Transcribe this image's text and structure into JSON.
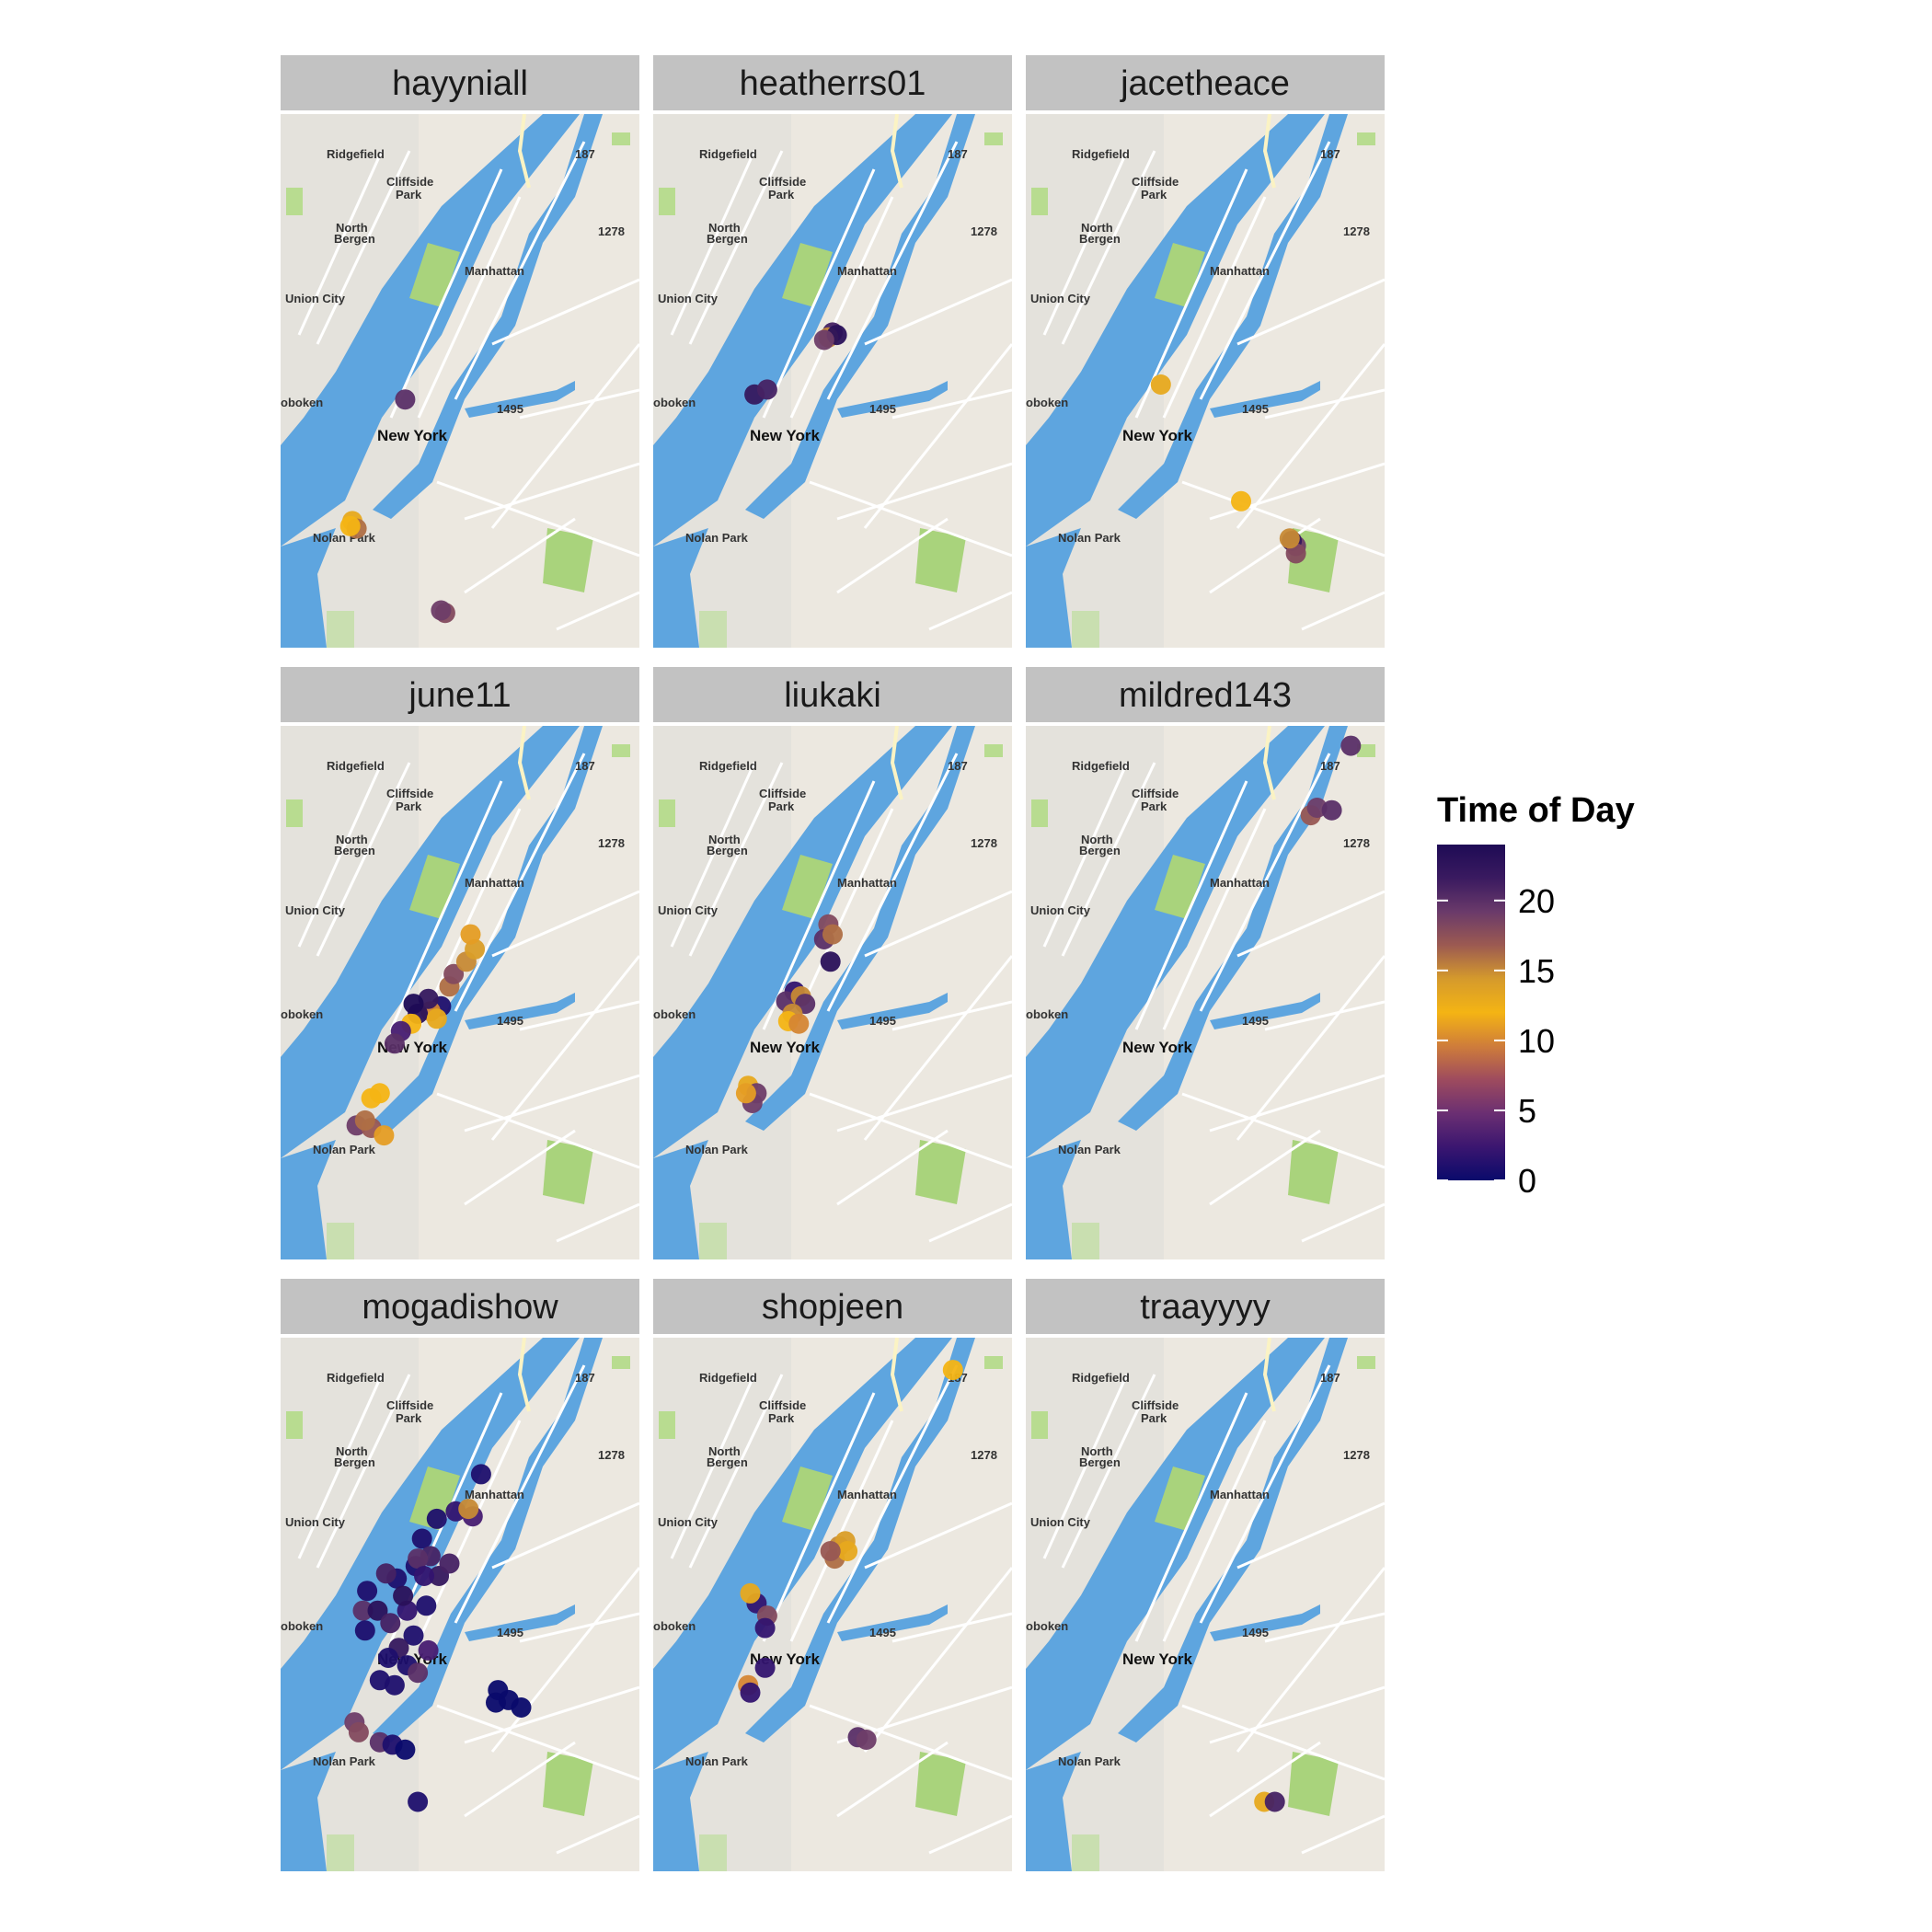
{
  "chart_data": {
    "type": "scatter",
    "facet_titles": [
      "hayyniall",
      "heatherrs01",
      "jacetheace",
      "june11",
      "liukaki",
      "mildred143",
      "mogadishow",
      "shopjeen",
      "traayyyy"
    ],
    "map_labels": [
      "Ridgefield",
      "Cliffside",
      "Park",
      "North",
      "Bergen",
      "Union City",
      "oboken",
      "Manhattan",
      "New York",
      "Nolan Park",
      "187",
      "1278",
      "1495"
    ],
    "legend": {
      "title": "Time of Day",
      "ticks": [
        0,
        5,
        10,
        15,
        20
      ],
      "range": [
        0,
        24
      ],
      "colors": [
        "#0a0a6b",
        "#3b1670",
        "#6b2f72",
        "#9e4b5e",
        "#cf7d3a",
        "#f4b414",
        "#d59a2c",
        "#9c5a51",
        "#6a3a6a",
        "#3a1a60",
        "#1e0b55"
      ]
    },
    "xlim": [
      -74.05,
      -73.88
    ],
    "ylim": [
      40.655,
      40.87
    ],
    "panels": [
      {
        "user": "hayyniall",
        "points": [
          [
            -73.991,
            40.755,
            20
          ],
          [
            -74.016,
            40.706,
            13
          ],
          [
            -74.014,
            40.703,
            16
          ],
          [
            -74.017,
            40.704,
            12
          ],
          [
            -73.972,
            40.669,
            18
          ],
          [
            -73.974,
            40.67,
            19
          ]
        ]
      },
      {
        "user": "heatherrs01",
        "points": [
          [
            -73.965,
            40.782,
            21
          ],
          [
            -73.967,
            40.78,
            15
          ],
          [
            -73.963,
            40.781,
            23
          ],
          [
            -73.969,
            40.779,
            19
          ],
          [
            -74.002,
            40.757,
            22
          ],
          [
            -73.996,
            40.759,
            21
          ]
        ]
      },
      {
        "user": "jacetheace",
        "points": [
          [
            -73.986,
            40.761,
            13
          ],
          [
            -73.948,
            40.714,
            12
          ],
          [
            -73.922,
            40.696,
            19
          ],
          [
            -73.924,
            40.698,
            22
          ],
          [
            -73.922,
            40.693,
            18
          ],
          [
            -73.925,
            40.699,
            15
          ]
        ]
      },
      {
        "user": "june11",
        "points": [
          [
            -73.974,
            40.757,
            1
          ],
          [
            -73.979,
            40.755,
            10
          ],
          [
            -73.985,
            40.754,
            23
          ],
          [
            -73.988,
            40.75,
            12
          ],
          [
            -73.97,
            40.765,
            16
          ],
          [
            -73.968,
            40.77,
            18
          ],
          [
            -73.962,
            40.775,
            15
          ],
          [
            -73.958,
            40.78,
            14
          ],
          [
            -73.96,
            40.786,
            11
          ],
          [
            -73.993,
            40.747,
            3
          ],
          [
            -73.996,
            40.742,
            20
          ],
          [
            -73.98,
            40.76,
            22
          ],
          [
            -73.976,
            40.752,
            13
          ],
          [
            -74.003,
            40.722,
            12
          ],
          [
            -74.007,
            40.72,
            12
          ],
          [
            -74.014,
            40.709,
            19
          ],
          [
            -74.007,
            40.708,
            17
          ],
          [
            -74.001,
            40.705,
            11
          ],
          [
            -74.01,
            40.711,
            16
          ],
          [
            -73.987,
            40.758,
            24
          ]
        ]
      },
      {
        "user": "liukaki",
        "points": [
          [
            -73.967,
            40.79,
            18
          ],
          [
            -73.969,
            40.784,
            20
          ],
          [
            -73.965,
            40.786,
            16
          ],
          [
            -73.966,
            40.775,
            23
          ],
          [
            -73.983,
            40.763,
            2
          ],
          [
            -73.987,
            40.759,
            20
          ],
          [
            -73.98,
            40.761,
            15
          ],
          [
            -73.978,
            40.758,
            20
          ],
          [
            -73.984,
            40.754,
            15
          ],
          [
            -73.986,
            40.751,
            12
          ],
          [
            -73.981,
            40.75,
            10
          ],
          [
            -74.005,
            40.725,
            13
          ],
          [
            -74.001,
            40.722,
            19
          ],
          [
            -74.003,
            40.718,
            19
          ],
          [
            -74.006,
            40.722,
            11
          ]
        ]
      },
      {
        "user": "mildred143",
        "points": [
          [
            -73.896,
            40.862,
            20
          ],
          [
            -73.915,
            40.834,
            17
          ],
          [
            -73.912,
            40.837,
            19
          ],
          [
            -73.905,
            40.836,
            20
          ]
        ]
      },
      {
        "user": "mogadishow",
        "points": [
          [
            -73.955,
            40.815,
            1
          ],
          [
            -73.967,
            40.8,
            2
          ],
          [
            -73.959,
            40.798,
            3
          ],
          [
            -73.961,
            40.801,
            15
          ],
          [
            -73.976,
            40.797,
            1
          ],
          [
            -73.983,
            40.789,
            1
          ],
          [
            -73.986,
            40.778,
            1
          ],
          [
            -73.979,
            40.782,
            21
          ],
          [
            -73.985,
            40.781,
            20
          ],
          [
            -73.995,
            40.773,
            1
          ],
          [
            -74.0,
            40.775,
            21
          ],
          [
            -74.009,
            40.768,
            1
          ],
          [
            -74.011,
            40.76,
            20
          ],
          [
            -74.01,
            40.752,
            1
          ],
          [
            -74.004,
            40.76,
            23
          ],
          [
            -73.998,
            40.755,
            21
          ],
          [
            -73.99,
            40.76,
            2
          ],
          [
            -73.987,
            40.75,
            1
          ],
          [
            -73.994,
            40.745,
            22
          ],
          [
            -73.999,
            40.741,
            1
          ],
          [
            -73.99,
            40.738,
            1
          ],
          [
            -73.985,
            40.735,
            20
          ],
          [
            -73.98,
            40.744,
            3
          ],
          [
            -74.003,
            40.732,
            1
          ],
          [
            -73.996,
            40.73,
            1
          ],
          [
            -73.947,
            40.728,
            0
          ],
          [
            -73.942,
            40.724,
            0
          ],
          [
            -73.936,
            40.721,
            0
          ],
          [
            -73.948,
            40.723,
            0
          ],
          [
            -74.015,
            40.715,
            19
          ],
          [
            -74.013,
            40.711,
            18
          ],
          [
            -74.003,
            40.707,
            20
          ],
          [
            -73.997,
            40.706,
            1
          ],
          [
            -73.991,
            40.704,
            0
          ],
          [
            -73.985,
            40.683,
            1
          ],
          [
            -73.975,
            40.774,
            22
          ],
          [
            -73.97,
            40.779,
            21
          ],
          [
            -73.982,
            40.774,
            2
          ],
          [
            -73.981,
            40.762,
            1
          ],
          [
            -73.992,
            40.766,
            23
          ]
        ]
      },
      {
        "user": "shopjeen",
        "points": [
          [
            -73.908,
            40.857,
            12
          ],
          [
            -73.962,
            40.786,
            15
          ],
          [
            -73.959,
            40.788,
            14
          ],
          [
            -73.964,
            40.781,
            16
          ],
          [
            -73.958,
            40.784,
            13
          ],
          [
            -73.966,
            40.784,
            17
          ],
          [
            -74.001,
            40.763,
            2
          ],
          [
            -74.004,
            40.767,
            13
          ],
          [
            -73.996,
            40.758,
            18
          ],
          [
            -73.997,
            40.753,
            2
          ],
          [
            -73.997,
            40.737,
            2
          ],
          [
            -74.005,
            40.73,
            10
          ],
          [
            -74.004,
            40.727,
            2
          ],
          [
            -73.953,
            40.709,
            20
          ],
          [
            -73.949,
            40.708,
            19
          ]
        ]
      },
      {
        "user": "traayyyy",
        "points": [
          [
            -73.937,
            40.683,
            13
          ],
          [
            -73.932,
            40.683,
            21
          ]
        ]
      }
    ]
  }
}
